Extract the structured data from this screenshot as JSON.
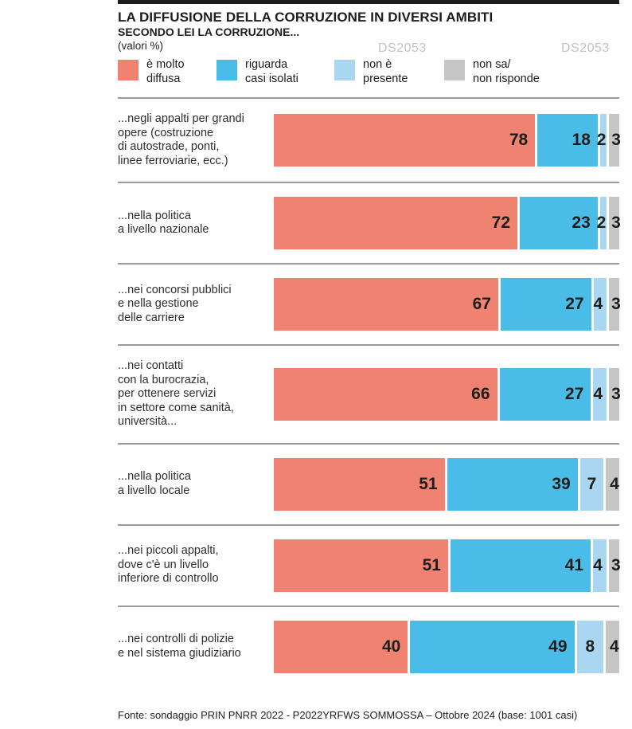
{
  "header": {
    "title": "LA DIFFUSIONE DELLA CORRUZIONE IN DIVERSI AMBITI",
    "subtitle": "SECONDO LEI LA CORRUZIONE...",
    "unit_note": "(valori %)",
    "watermark": "DS2053"
  },
  "legend": [
    {
      "label": "è molto\ndiffusa"
    },
    {
      "label": "riguarda\ncasi isolati"
    },
    {
      "label": "non è\npresente"
    },
    {
      "label": "non sa/\nnon risponde"
    }
  ],
  "chart_data": {
    "type": "bar",
    "variant": "horizontal-stacked",
    "unit": "%",
    "title": "LA DIFFUSIONE DELLA CORRUZIONE IN DIVERSI AMBITI",
    "subtitle": "SECONDO LEI LA CORRUZIONE...",
    "value_note": "(valori %)",
    "xlim": [
      0,
      100
    ],
    "legend_position": "top",
    "grid": false,
    "categories": [
      "...negli appalti per grandi\nopere (costruzione\ndi autostrade, ponti,\nlinee ferroviarie, ecc.)",
      "...nella politica\na livello nazionale",
      "...nei concorsi pubblici\ne nella gestione\ndelle carriere",
      "...nei contatti\ncon la burocrazia,\nper ottenere servizi\nin settore come sanità,\nuniversità...",
      "...nella politica\na livello locale",
      "...nei piccoli appalti,\ndove c'è un livello\ninferiore di controllo",
      "...nei controlli di polizie\ne nel sistema giudiziario"
    ],
    "series": [
      {
        "key": "molto-diffusa",
        "name": "è molto diffusa",
        "color": "#F08272",
        "values": [
          78,
          72,
          67,
          66,
          51,
          51,
          40
        ]
      },
      {
        "key": "casi-isolati",
        "name": "riguarda casi isolati",
        "color": "#4ABCE8",
        "values": [
          18,
          23,
          27,
          27,
          39,
          41,
          49
        ]
      },
      {
        "key": "non-presente",
        "name": "non è presente",
        "color": "#A9D7F2",
        "values": [
          2,
          2,
          4,
          4,
          7,
          4,
          8
        ]
      },
      {
        "key": "non-sa",
        "name": "non sa/non risponde",
        "color": "#C6C6C6",
        "values": [
          3,
          3,
          3,
          3,
          4,
          3,
          4
        ]
      }
    ]
  },
  "footer": {
    "source": "Fonte: sondaggio PRIN PNRR 2022 - P2022YRFWS SOMMOSSA – Ottobre 2024 (base: 1001 casi)"
  }
}
